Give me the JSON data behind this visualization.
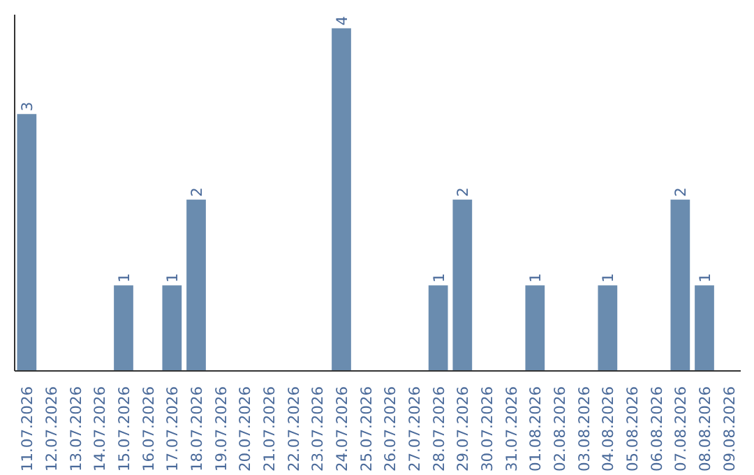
{
  "chart_data": {
    "type": "bar",
    "color": "#6a8caf",
    "categories": [
      "11.07.2026",
      "12.07.2026",
      "13.07.2026",
      "14.07.2026",
      "15.07.2026",
      "16.07.2026",
      "17.07.2026",
      "18.07.2026",
      "19.07.2026",
      "20.07.2026",
      "21.07.2026",
      "22.07.2026",
      "23.07.2026",
      "24.07.2026",
      "25.07.2026",
      "26.07.2026",
      "27.07.2026",
      "28.07.2026",
      "29.07.2026",
      "30.07.2026",
      "31.07.2026",
      "01.08.2026",
      "02.08.2026",
      "03.08.2026",
      "04.08.2026",
      "05.08.2026",
      "06.08.2026",
      "07.08.2026",
      "08.08.2026",
      "09.08.2026"
    ],
    "values": [
      3,
      0,
      0,
      0,
      1,
      0,
      1,
      2,
      0,
      0,
      0,
      0,
      0,
      4,
      0,
      0,
      0,
      1,
      2,
      0,
      0,
      1,
      0,
      0,
      1,
      0,
      0,
      2,
      1,
      0
    ],
    "value_labels": [
      "3",
      null,
      null,
      null,
      "1",
      null,
      "1",
      "2",
      null,
      null,
      null,
      null,
      null,
      "4",
      null,
      null,
      null,
      "1",
      "2",
      null,
      null,
      "1",
      null,
      null,
      "1",
      null,
      null,
      "2",
      "1",
      null
    ],
    "tick_labels": "x",
    "grid": false
  }
}
